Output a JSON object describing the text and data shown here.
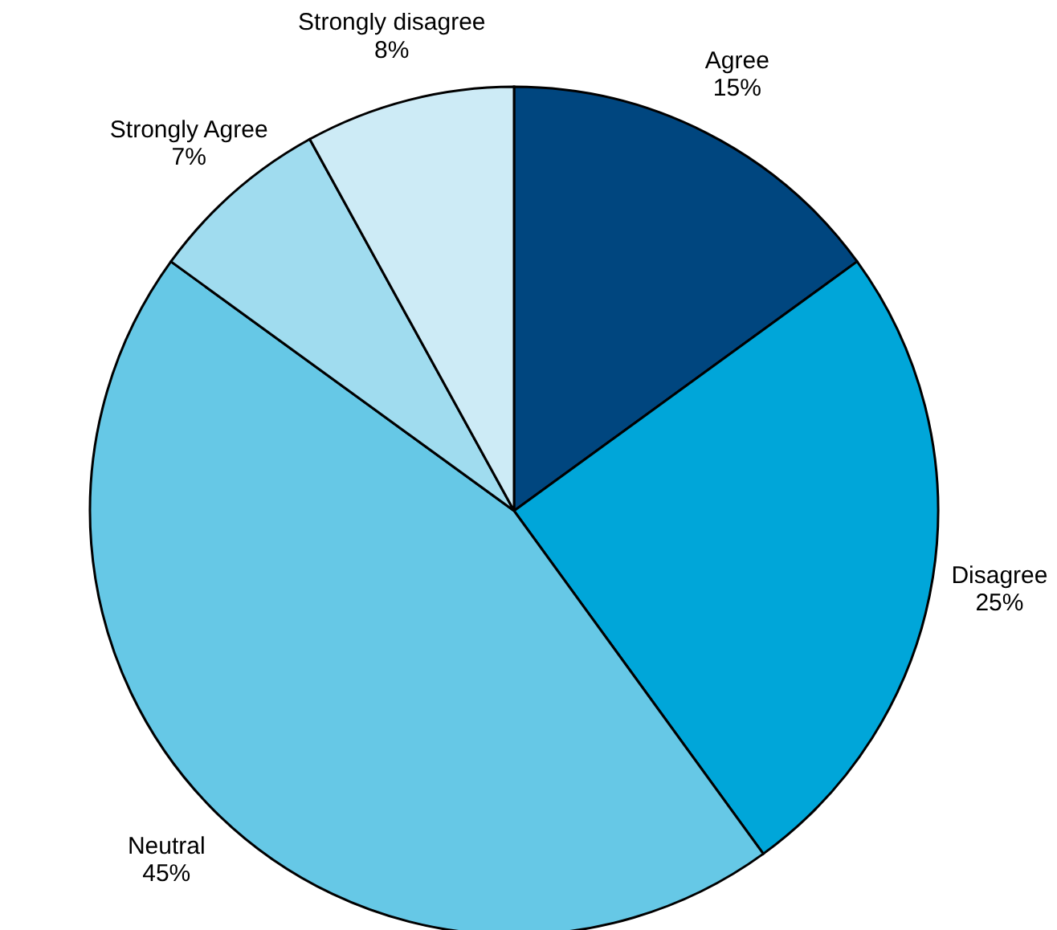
{
  "chart_data": {
    "type": "pie",
    "categories": [
      "Agree",
      "Disagree",
      "Neutral",
      "Strongly Agree",
      "Strongly disagree"
    ],
    "values": [
      15,
      25,
      45,
      7,
      8
    ],
    "value_labels": [
      "15%",
      "25%",
      "45%",
      "7%",
      "8%"
    ],
    "colors": [
      "#00467f",
      "#00a6d9",
      "#66c8e6",
      "#a0dcef",
      "#cdebf6"
    ]
  }
}
